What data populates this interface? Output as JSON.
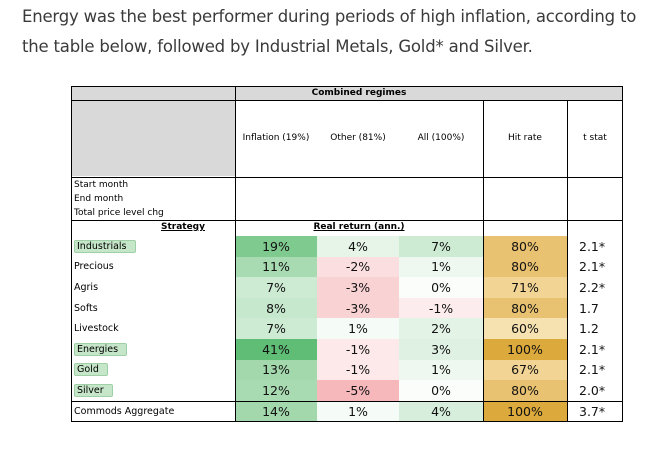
{
  "intro_text": "Energy was the best performer during periods of high inflation, according to the table below, followed by Industrial Metals, Gold* and Silver.",
  "table": {
    "group_header": "Combined regimes",
    "columns": [
      "Inflation (19%)",
      "Other (81%)",
      "All (100%)",
      "Hit rate",
      "t stat"
    ],
    "meta_labels": [
      "Start month",
      "End month",
      "Total price level chg"
    ],
    "strategy_header": "Strategy",
    "real_return_header": "Real return (ann.)",
    "rows": [
      {
        "name": "Industrials",
        "highlight": true,
        "inflation": "19%",
        "other": "4%",
        "all": "7%",
        "hit": "80%",
        "t": "2.1*"
      },
      {
        "name": "Precious",
        "highlight": false,
        "inflation": "11%",
        "other": "-2%",
        "all": "1%",
        "hit": "80%",
        "t": "2.1*"
      },
      {
        "name": "Agris",
        "highlight": false,
        "inflation": "7%",
        "other": "-3%",
        "all": "0%",
        "hit": "71%",
        "t": "2.2*"
      },
      {
        "name": "Softs",
        "highlight": false,
        "inflation": "8%",
        "other": "-3%",
        "all": "-1%",
        "hit": "80%",
        "t": "1.7"
      },
      {
        "name": "Livestock",
        "highlight": false,
        "inflation": "7%",
        "other": "1%",
        "all": "2%",
        "hit": "60%",
        "t": "1.2"
      },
      {
        "name": "Energies",
        "highlight": true,
        "inflation": "41%",
        "other": "-1%",
        "all": "3%",
        "hit": "100%",
        "t": "2.1*"
      },
      {
        "name": "Gold",
        "highlight": true,
        "inflation": "13%",
        "other": "-1%",
        "all": "1%",
        "hit": "67%",
        "t": "2.1*"
      },
      {
        "name": "Silver",
        "highlight": true,
        "inflation": "12%",
        "other": "-5%",
        "all": "0%",
        "hit": "80%",
        "t": "2.0*"
      },
      {
        "name": "Commods Aggregate",
        "highlight": false,
        "inflation": "14%",
        "other": "1%",
        "all": "4%",
        "hit": "100%",
        "t": "3.7*"
      }
    ],
    "colors": {
      "inflation": [
        "#7fca8f",
        "#a9dbb2",
        "#cdebd2",
        "#c6e8cc",
        "#cdebd2",
        "#5fbd76",
        "#a3d8ad",
        "#a9dbb2",
        "#a3d8ad"
      ],
      "other": [
        "#e6f5e8",
        "#fbdfe0",
        "#f9d2d4",
        "#f9d2d4",
        "#f5fbf6",
        "#fde9ea",
        "#fde9ea",
        "#f7b8bb",
        "#f5fbf6"
      ],
      "all": [
        "#cdebd2",
        "#eef8f0",
        "#fbfdfb",
        "#fdeced",
        "#e3f3e5",
        "#dff1e3",
        "#eef8f0",
        "#fbfdfb",
        "#d6eedb"
      ],
      "hit": [
        "#e9c271",
        "#e9c271",
        "#f2d594",
        "#e9c271",
        "#f6e1b0",
        "#dba93c",
        "#f2d594",
        "#e9c271",
        "#dba93c"
      ]
    }
  }
}
